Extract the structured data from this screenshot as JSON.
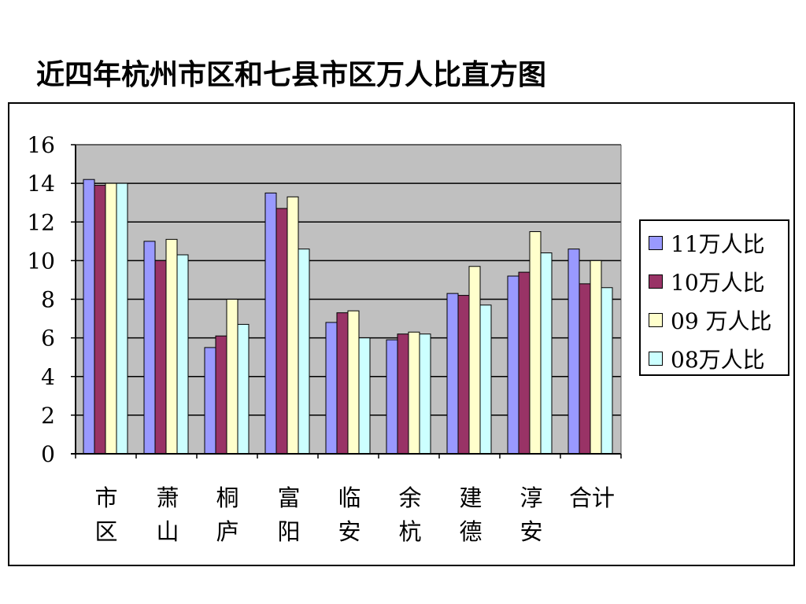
{
  "page": {
    "title": "近四年杭州市区和七县市区万人比直方图"
  },
  "chart_data": {
    "type": "bar",
    "title": "近四年杭州市区和七县市区万人比直方图",
    "xlabel": "",
    "ylabel": "",
    "categories": [
      "市区",
      "萧山",
      "桐庐",
      "富阳",
      "临安",
      "余杭",
      "建德",
      "淳安",
      "合计"
    ],
    "ylim": [
      0,
      16
    ],
    "yticks": [
      "0",
      "2",
      "4",
      "6",
      "8",
      "10",
      "12",
      "14",
      "16"
    ],
    "grid": true,
    "legend_position": "right",
    "series": [
      {
        "name": "11万人比",
        "color": "#9999ff",
        "values": [
          14.2,
          11.0,
          5.5,
          13.5,
          6.8,
          5.9,
          8.3,
          9.2,
          10.6
        ]
      },
      {
        "name": "10万人比",
        "color": "#993366",
        "values": [
          13.9,
          10.0,
          6.1,
          12.7,
          7.3,
          6.2,
          8.2,
          9.4,
          8.8
        ]
      },
      {
        "name": "09 万人比",
        "color": "#ffffcc",
        "values": [
          14.0,
          11.1,
          8.0,
          13.3,
          7.4,
          6.3,
          9.7,
          11.5,
          10.0
        ]
      },
      {
        "name": "08万人比",
        "color": "#ccffff",
        "values": [
          14.0,
          10.3,
          6.7,
          10.6,
          6.0,
          6.2,
          7.7,
          10.4,
          8.6
        ]
      }
    ]
  },
  "colors": {
    "plot_background": "#c0c0c0",
    "gridline": "#000000"
  }
}
